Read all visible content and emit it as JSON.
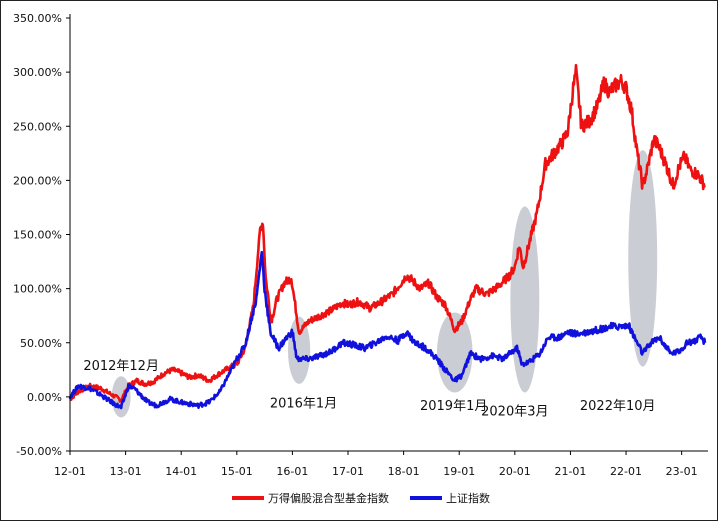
{
  "chart_data": {
    "type": "line",
    "title": "",
    "xlabel": "",
    "ylabel": "",
    "ylim": [
      -50,
      350
    ],
    "y_ticks": [
      -50,
      0,
      50,
      100,
      150,
      200,
      250,
      300,
      350
    ],
    "y_tick_labels": [
      "-50.00%",
      "0.00%",
      "50.00%",
      "100.00%",
      "150.00%",
      "200.00%",
      "250.00%",
      "300.00%",
      "350.00%"
    ],
    "x_range": [
      2012.0,
      2023.42
    ],
    "x_ticks": [
      2012,
      2013,
      2014,
      2015,
      2016,
      2017,
      2018,
      2019,
      2020,
      2021,
      2022,
      2023
    ],
    "x_tick_labels": [
      "12-01",
      "13-01",
      "14-01",
      "15-01",
      "16-01",
      "17-01",
      "18-01",
      "19-01",
      "20-01",
      "21-01",
      "22-01",
      "23-01"
    ],
    "legend_position": "bottom",
    "series": [
      {
        "name": "万得偏股混合型基金指数",
        "color": "#ee1111",
        "points": [
          [
            2012.0,
            -2
          ],
          [
            2012.15,
            5
          ],
          [
            2012.35,
            10
          ],
          [
            2012.55,
            8
          ],
          [
            2012.75,
            2
          ],
          [
            2012.92,
            -3
          ],
          [
            2013.05,
            10
          ],
          [
            2013.2,
            15
          ],
          [
            2013.35,
            12
          ],
          [
            2013.5,
            14
          ],
          [
            2013.7,
            22
          ],
          [
            2013.85,
            25
          ],
          [
            2014.0,
            22
          ],
          [
            2014.15,
            18
          ],
          [
            2014.3,
            20
          ],
          [
            2014.5,
            15
          ],
          [
            2014.7,
            22
          ],
          [
            2014.9,
            28
          ],
          [
            2015.0,
            30
          ],
          [
            2015.15,
            45
          ],
          [
            2015.3,
            85
          ],
          [
            2015.42,
            155
          ],
          [
            2015.47,
            162
          ],
          [
            2015.52,
            110
          ],
          [
            2015.62,
            70
          ],
          [
            2015.72,
            90
          ],
          [
            2015.85,
            105
          ],
          [
            2015.98,
            110
          ],
          [
            2016.05,
            85
          ],
          [
            2016.12,
            60
          ],
          [
            2016.3,
            70
          ],
          [
            2016.5,
            75
          ],
          [
            2016.7,
            80
          ],
          [
            2016.9,
            87
          ],
          [
            2017.0,
            85
          ],
          [
            2017.2,
            88
          ],
          [
            2017.4,
            82
          ],
          [
            2017.6,
            88
          ],
          [
            2017.8,
            95
          ],
          [
            2017.95,
            105
          ],
          [
            2018.05,
            112
          ],
          [
            2018.15,
            108
          ],
          [
            2018.3,
            100
          ],
          [
            2018.45,
            105
          ],
          [
            2018.6,
            92
          ],
          [
            2018.75,
            85
          ],
          [
            2018.92,
            62
          ],
          [
            2019.05,
            70
          ],
          [
            2019.2,
            90
          ],
          [
            2019.3,
            100
          ],
          [
            2019.5,
            95
          ],
          [
            2019.7,
            102
          ],
          [
            2019.9,
            112
          ],
          [
            2020.0,
            120
          ],
          [
            2020.08,
            140
          ],
          [
            2020.15,
            120
          ],
          [
            2020.25,
            140
          ],
          [
            2020.4,
            170
          ],
          [
            2020.55,
            215
          ],
          [
            2020.7,
            225
          ],
          [
            2020.85,
            235
          ],
          [
            2020.95,
            245
          ],
          [
            2021.05,
            285
          ],
          [
            2021.1,
            300
          ],
          [
            2021.2,
            250
          ],
          [
            2021.35,
            255
          ],
          [
            2021.5,
            270
          ],
          [
            2021.6,
            290
          ],
          [
            2021.7,
            282
          ],
          [
            2021.82,
            288
          ],
          [
            2021.92,
            292
          ],
          [
            2022.0,
            285
          ],
          [
            2022.1,
            265
          ],
          [
            2022.2,
            225
          ],
          [
            2022.3,
            195
          ],
          [
            2022.38,
            210
          ],
          [
            2022.5,
            238
          ],
          [
            2022.6,
            230
          ],
          [
            2022.75,
            210
          ],
          [
            2022.85,
            195
          ],
          [
            2022.95,
            212
          ],
          [
            2023.05,
            222
          ],
          [
            2023.15,
            210
          ],
          [
            2023.3,
            205
          ],
          [
            2023.42,
            195
          ]
        ]
      },
      {
        "name": "上证指数",
        "color": "#1111dd",
        "points": [
          [
            2012.0,
            0
          ],
          [
            2012.15,
            10
          ],
          [
            2012.35,
            8
          ],
          [
            2012.55,
            2
          ],
          [
            2012.75,
            -5
          ],
          [
            2012.92,
            -10
          ],
          [
            2013.05,
            10
          ],
          [
            2013.15,
            8
          ],
          [
            2013.4,
            -5
          ],
          [
            2013.55,
            -8
          ],
          [
            2013.8,
            -2
          ],
          [
            2014.0,
            -5
          ],
          [
            2014.3,
            -8
          ],
          [
            2014.5,
            -5
          ],
          [
            2014.7,
            5
          ],
          [
            2014.85,
            20
          ],
          [
            2015.0,
            35
          ],
          [
            2015.15,
            48
          ],
          [
            2015.35,
            90
          ],
          [
            2015.45,
            135
          ],
          [
            2015.5,
            100
          ],
          [
            2015.6,
            60
          ],
          [
            2015.75,
            45
          ],
          [
            2015.9,
            55
          ],
          [
            2016.0,
            60
          ],
          [
            2016.08,
            35
          ],
          [
            2016.3,
            35
          ],
          [
            2016.5,
            38
          ],
          [
            2016.7,
            42
          ],
          [
            2016.9,
            50
          ],
          [
            2017.1,
            48
          ],
          [
            2017.3,
            45
          ],
          [
            2017.5,
            50
          ],
          [
            2017.7,
            56
          ],
          [
            2017.9,
            52
          ],
          [
            2018.05,
            60
          ],
          [
            2018.2,
            50
          ],
          [
            2018.4,
            45
          ],
          [
            2018.6,
            35
          ],
          [
            2018.75,
            25
          ],
          [
            2018.92,
            15
          ],
          [
            2019.05,
            20
          ],
          [
            2019.2,
            40
          ],
          [
            2019.4,
            35
          ],
          [
            2019.6,
            38
          ],
          [
            2019.8,
            35
          ],
          [
            2019.95,
            42
          ],
          [
            2020.05,
            45
          ],
          [
            2020.12,
            30
          ],
          [
            2020.25,
            32
          ],
          [
            2020.45,
            40
          ],
          [
            2020.6,
            55
          ],
          [
            2020.8,
            55
          ],
          [
            2020.95,
            60
          ],
          [
            2021.1,
            58
          ],
          [
            2021.3,
            60
          ],
          [
            2021.5,
            62
          ],
          [
            2021.7,
            65
          ],
          [
            2021.9,
            65
          ],
          [
            2022.05,
            66
          ],
          [
            2022.15,
            55
          ],
          [
            2022.3,
            40
          ],
          [
            2022.45,
            50
          ],
          [
            2022.6,
            55
          ],
          [
            2022.8,
            40
          ],
          [
            2022.95,
            42
          ],
          [
            2023.1,
            50
          ],
          [
            2023.25,
            52
          ],
          [
            2023.35,
            55
          ],
          [
            2023.42,
            50
          ]
        ]
      }
    ],
    "annotations": [
      {
        "label": "2012年12月",
        "x": 2012.92,
        "y": 25
      },
      {
        "label": "2016年1月",
        "x": 2016.2,
        "y": -10
      },
      {
        "label": "2019年1月",
        "x": 2018.9,
        "y": -12
      },
      {
        "label": "2020年3月",
        "x": 2020.0,
        "y": -17
      },
      {
        "label": "2022年10月",
        "x": 2021.85,
        "y": -12
      }
    ],
    "highlight_regions": [
      {
        "x": 2012.92,
        "y": 0,
        "rx": 0.17,
        "ry": 19
      },
      {
        "x": 2016.12,
        "y": 43,
        "rx": 0.2,
        "ry": 31
      },
      {
        "x": 2018.92,
        "y": 41,
        "rx": 0.32,
        "ry": 37
      },
      {
        "x": 2020.18,
        "y": 90,
        "rx": 0.26,
        "ry": 86
      },
      {
        "x": 2022.3,
        "y": 128,
        "rx": 0.26,
        "ry": 100
      }
    ]
  }
}
